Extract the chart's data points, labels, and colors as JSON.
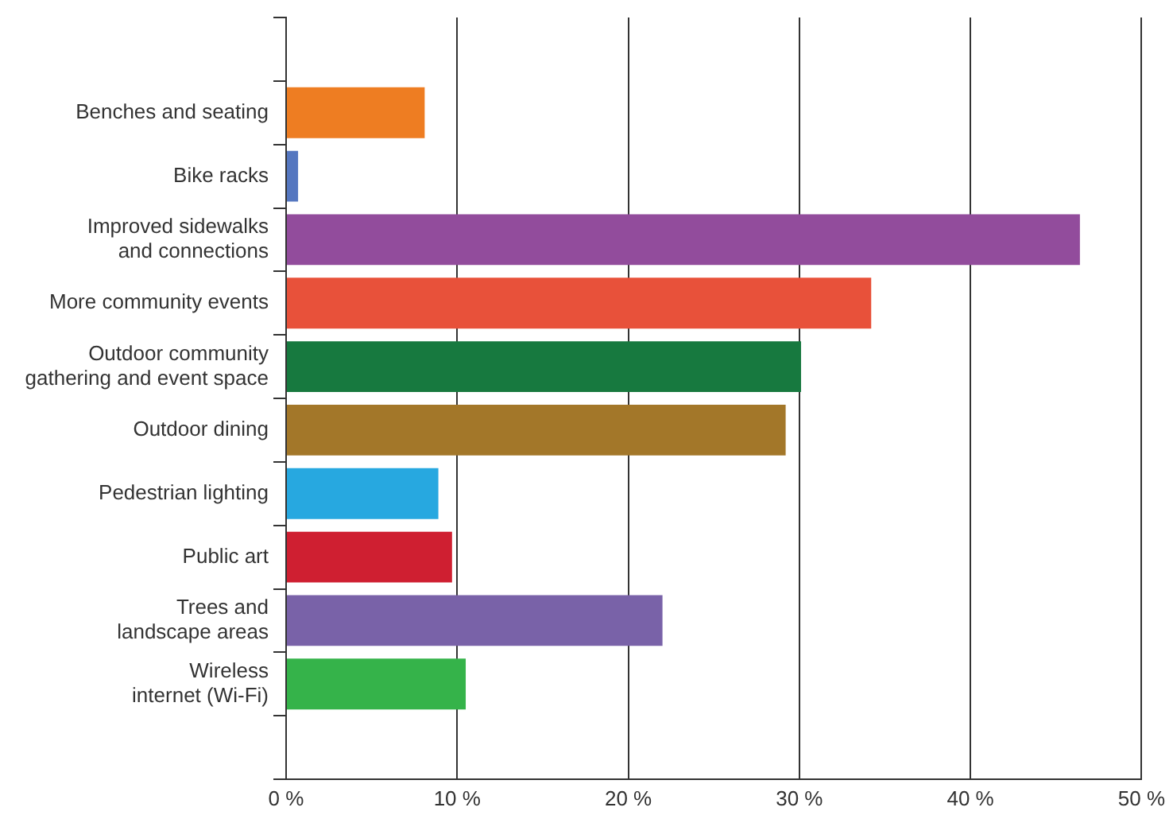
{
  "chart_data": {
    "type": "bar",
    "orientation": "horizontal",
    "categories": [
      "Benches and seating",
      "Bike racks",
      "Improved sidewalks\nand connections",
      "More community events",
      "Outdoor community\ngathering and event space",
      "Outdoor dining",
      "Pedestrian lighting",
      "Public art",
      "Trees and\nlandscape areas",
      "Wireless\ninternet (Wi-Fi)"
    ],
    "values": [
      8.1,
      0.7,
      46.4,
      34.2,
      30.1,
      29.2,
      8.9,
      9.7,
      22.0,
      10.5
    ],
    "colors": [
      "#ee7d22",
      "#5577c0",
      "#924c9c",
      "#e8513a",
      "#17793f",
      "#a37729",
      "#27a8e0",
      "#cf1f31",
      "#7962a8",
      "#35b34a"
    ],
    "xlim": [
      0,
      50
    ],
    "xticks": [
      {
        "value": 0,
        "label": "0 %"
      },
      {
        "value": 10,
        "label": "10 %"
      },
      {
        "value": 20,
        "label": "20 %"
      },
      {
        "value": 30,
        "label": "30 %"
      },
      {
        "value": 40,
        "label": "40 %"
      },
      {
        "value": 50,
        "label": "50 %"
      }
    ],
    "grid": "x"
  }
}
